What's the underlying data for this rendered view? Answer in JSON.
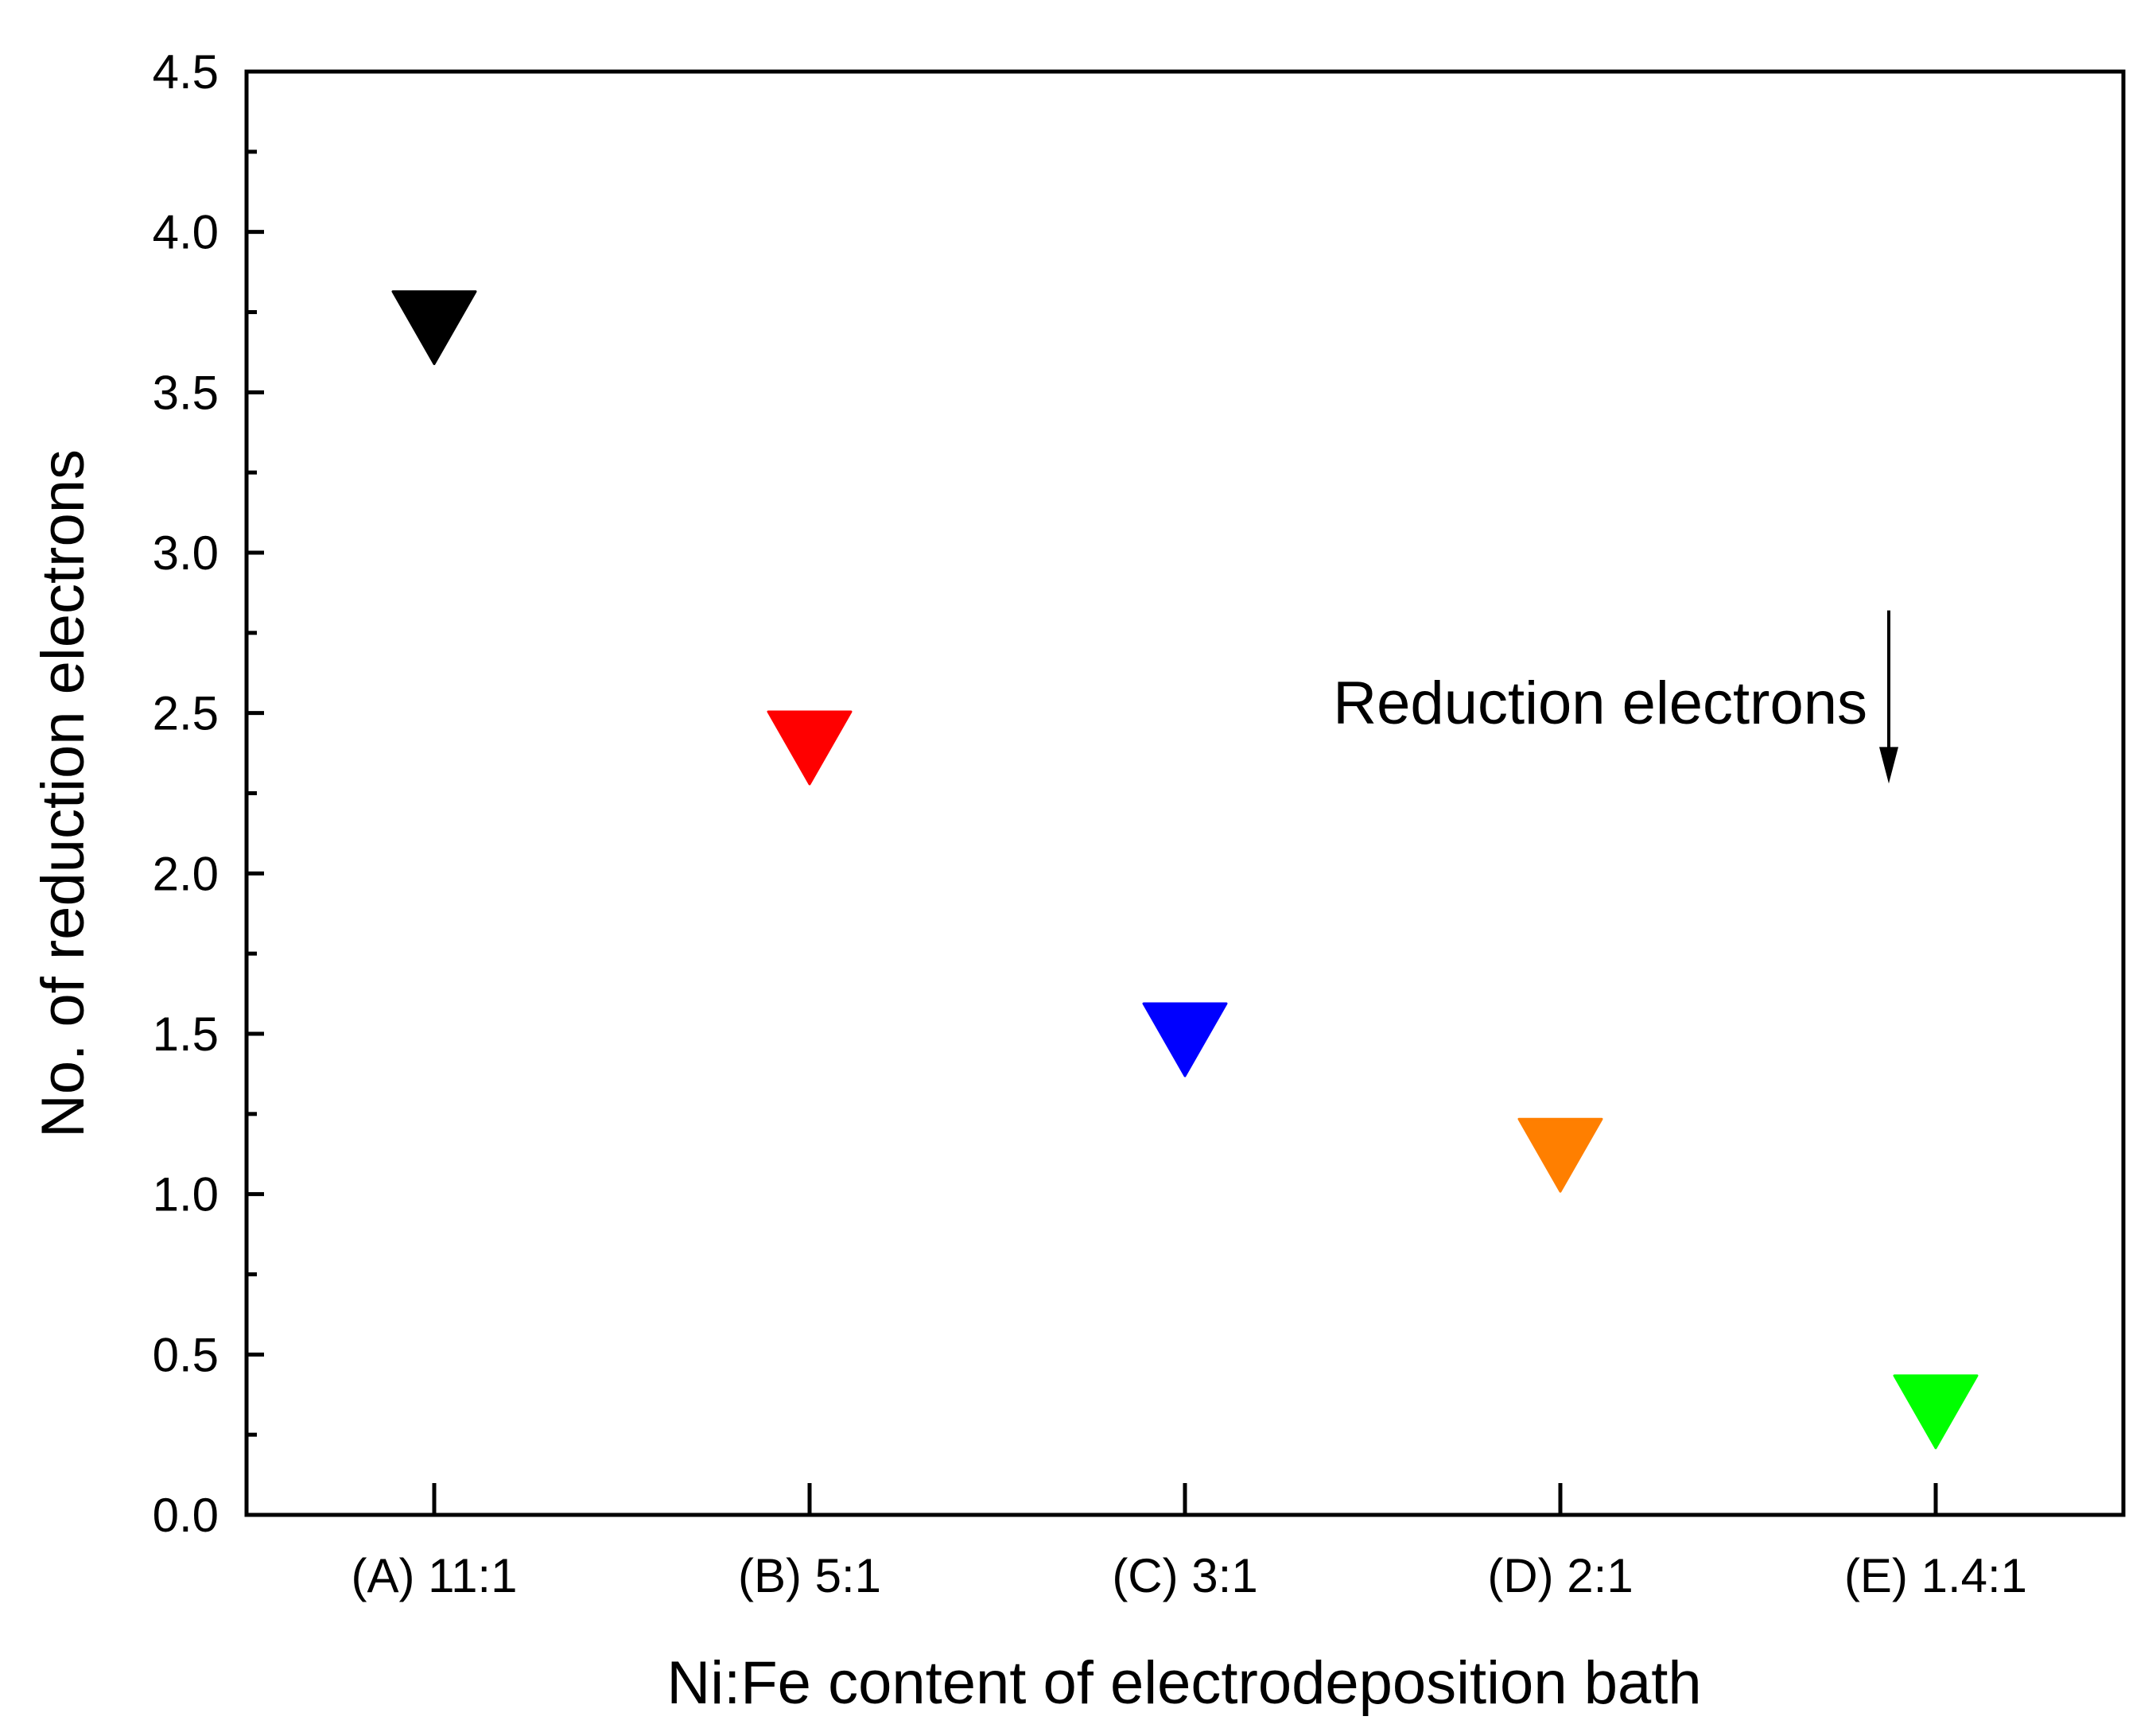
{
  "chart_data": {
    "type": "scatter",
    "title": "",
    "xlabel": "Ni:Fe content of electrodeposition bath",
    "ylabel": "No. of reduction electrons",
    "categories": [
      "(A) 11:1",
      "(B) 5:1",
      "(C) 3:1",
      "(D) 2:1",
      "(E) 1.4:1"
    ],
    "values": [
      3.72,
      2.41,
      1.5,
      1.14,
      0.34
    ],
    "point_colors": [
      "#000000",
      "#ff0000",
      "#0000ff",
      "#ff7f00",
      "#00ff00"
    ],
    "marker": "triangle-down",
    "ylim": [
      0,
      4.5
    ],
    "yticks": [
      "0.0",
      "0.5",
      "1.0",
      "1.5",
      "2.0",
      "2.5",
      "3.0",
      "3.5",
      "4.0",
      "4.5"
    ],
    "grid": false,
    "annotation": {
      "text": "Reduction electrons",
      "arrow": "down",
      "y_top": 2.82,
      "y_bottom": 2.28
    }
  }
}
